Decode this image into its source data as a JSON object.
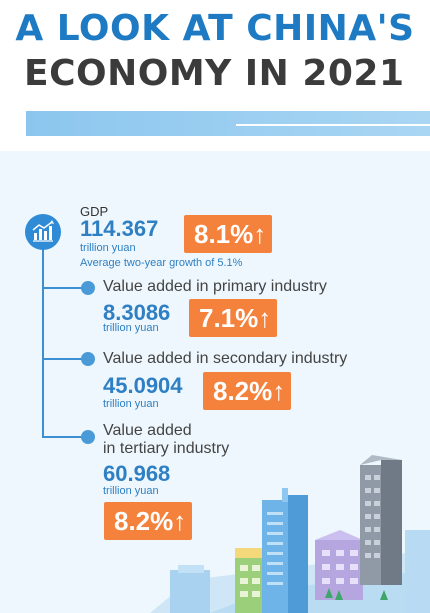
{
  "title": {
    "line1": "A LOOK AT CHINA'S",
    "line2": "ECONOMY IN 2021"
  },
  "gdp": {
    "label": "GDP",
    "value": "114.367",
    "unit": "trillion yuan",
    "growth": "8.1%",
    "arrow": "↑",
    "note": "Average two-year growth of 5.1%"
  },
  "primary": {
    "label": "Value added in primary industry",
    "value": "8.3086",
    "unit": "trillion yuan",
    "growth": "7.1%",
    "arrow": "↑"
  },
  "secondary": {
    "label": "Value added in secondary industry",
    "value": "45.0904",
    "unit": "trillion yuan",
    "growth": "8.2%",
    "arrow": "↑"
  },
  "tertiary": {
    "label_line1": "Value added",
    "label_line2": "in tertiary industry",
    "value": "60.968",
    "unit": "trillion yuan",
    "growth": "8.2%",
    "arrow": "↑"
  },
  "colors": {
    "title_blue": "#1e7bc3",
    "accent_orange": "#f5823c",
    "value_blue": "#2e7fc3"
  },
  "icons": [
    "bar-chart-icon",
    "city-illustration"
  ]
}
